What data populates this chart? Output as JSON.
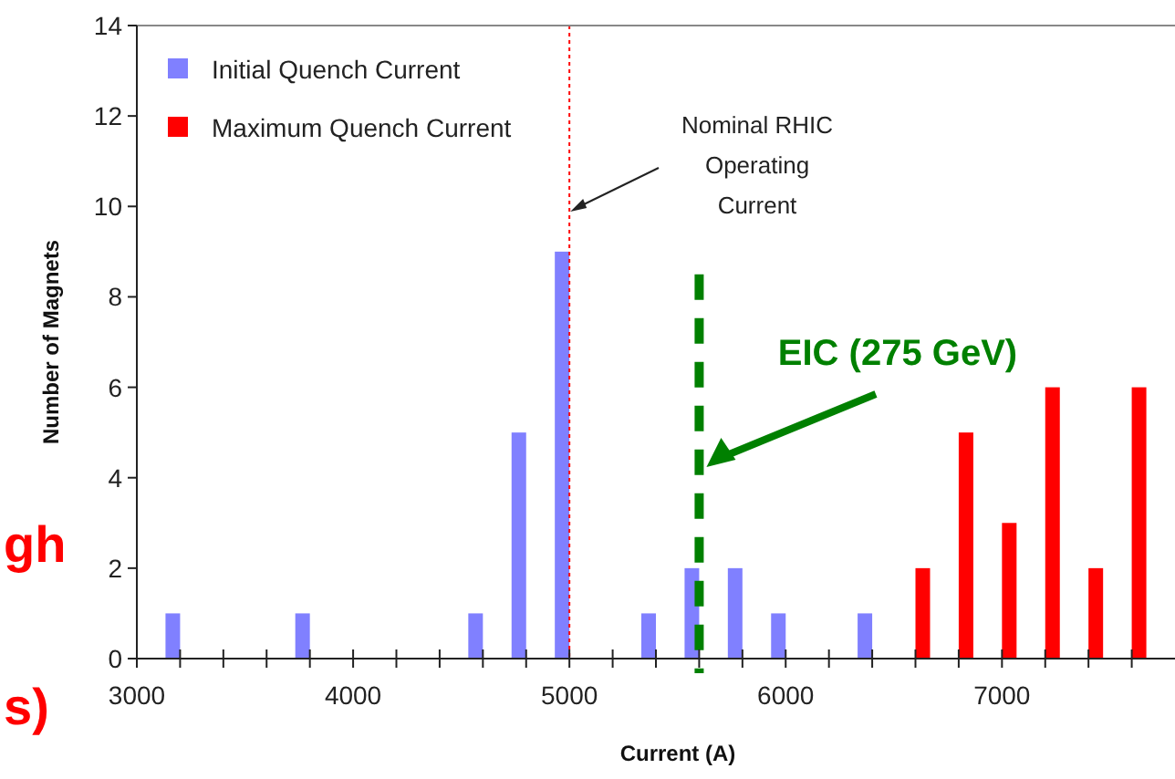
{
  "chart_data": {
    "type": "bar",
    "xlabel": "Current (A)",
    "ylabel": "Number of Magnets",
    "series": [
      {
        "name": "Initial Quench Current",
        "color": "#8080ff",
        "x": [
          3200,
          3800,
          4600,
          4800,
          5000,
          5400,
          5600,
          5800,
          6000,
          6400
        ],
        "values": [
          1,
          1,
          1,
          5,
          9,
          1,
          2,
          2,
          1,
          1
        ]
      },
      {
        "name": "Maximum Quench Current",
        "color": "#ff0000",
        "x": [
          6600,
          6800,
          7000,
          7200,
          7400,
          7600
        ],
        "values": [
          2,
          5,
          3,
          6,
          2,
          6
        ]
      }
    ],
    "xlim": [
      3000,
      7800
    ],
    "xticks": [
      3000,
      {
        "value": 3200,
        "label": null
      },
      {
        "value": 3400,
        "label": null
      },
      {
        "value": 3600,
        "label": null
      },
      {
        "value": 3800,
        "label": null
      },
      4000,
      {
        "value": 4200,
        "label": null
      },
      {
        "value": 4400,
        "label": null
      },
      {
        "value": 4600,
        "label": null
      },
      {
        "value": 4800,
        "label": null
      },
      5000,
      {
        "value": 5200,
        "label": null
      },
      {
        "value": 5400,
        "label": null
      },
      {
        "value": 5600,
        "label": null
      },
      {
        "value": 5800,
        "label": null
      },
      6000,
      {
        "value": 6200,
        "label": null
      },
      {
        "value": 6400,
        "label": null
      },
      {
        "value": 6600,
        "label": null
      },
      {
        "value": 6800,
        "label": null
      },
      7000,
      {
        "value": 7200,
        "label": null
      },
      {
        "value": 7400,
        "label": null
      },
      {
        "value": 7600,
        "label": null
      }
    ],
    "ylim": [
      0,
      14
    ],
    "yticks": [
      0,
      2,
      4,
      6,
      8,
      10,
      12,
      14
    ],
    "ref_lines": [
      {
        "axis": "x",
        "value": 5000,
        "label": "Nominal RHIC Operating Current",
        "color": "#ff0000",
        "line_style": "dotted"
      },
      {
        "axis": "x",
        "value": 5600,
        "label": "EIC (275 GeV)",
        "color": "#008000",
        "line_style": "dashed"
      }
    ],
    "annotations": [
      "gh",
      "s)"
    ],
    "legend": "top left",
    "grid": false
  }
}
